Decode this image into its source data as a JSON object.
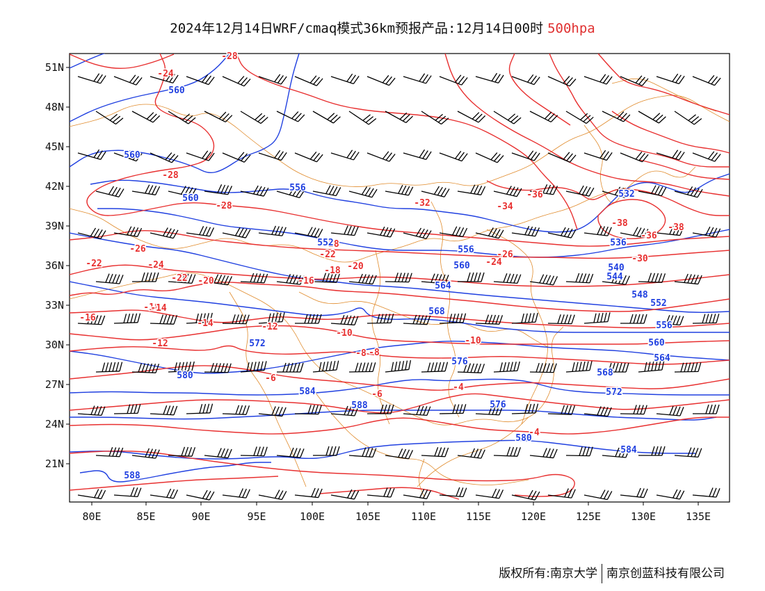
{
  "title": {
    "main": "2024年12月14日WRF/cmaq模式36km预报产品:12月14日00时",
    "level": "500hpa"
  },
  "axes": {
    "lon_labels": [
      "80E",
      "85E",
      "90E",
      "95E",
      "100E",
      "105E",
      "110E",
      "115E",
      "120E",
      "125E",
      "130E",
      "135E"
    ],
    "lat_labels": [
      "51N",
      "48N",
      "45N",
      "42N",
      "39N",
      "36N",
      "33N",
      "30N",
      "27N",
      "24N",
      "21N"
    ]
  },
  "temperature_labels": [
    "-28",
    "-24",
    "-28",
    "-28",
    "-26",
    "-22",
    "-24",
    "-22",
    "-20",
    "-18",
    "-16",
    "-14",
    "-12",
    "-10",
    "-8",
    "-6",
    "-4",
    "-32",
    "-34",
    "-36",
    "-38",
    "-38",
    "-36",
    "-30",
    "-28",
    "-26",
    "-24",
    "-22",
    "-20",
    "-18",
    "-16",
    "-14",
    "-12",
    "-10",
    "-8",
    "-6",
    "-4"
  ],
  "height_labels": [
    "560",
    "560",
    "556",
    "560",
    "552",
    "556",
    "560",
    "564",
    "568",
    "572",
    "576",
    "580",
    "584",
    "588",
    "532",
    "536",
    "540",
    "544",
    "548",
    "552",
    "556",
    "560",
    "564",
    "568",
    "572",
    "576",
    "580",
    "584",
    "588"
  ],
  "colors": {
    "temperature": "#e83030",
    "geopotential_height": "#2040e0",
    "boundaries": "#e08a2a",
    "wind_barbs": "#000000"
  },
  "footer": {
    "copyright": "版权所有:南京大学",
    "company": "南京创蓝科技有限公司"
  }
}
